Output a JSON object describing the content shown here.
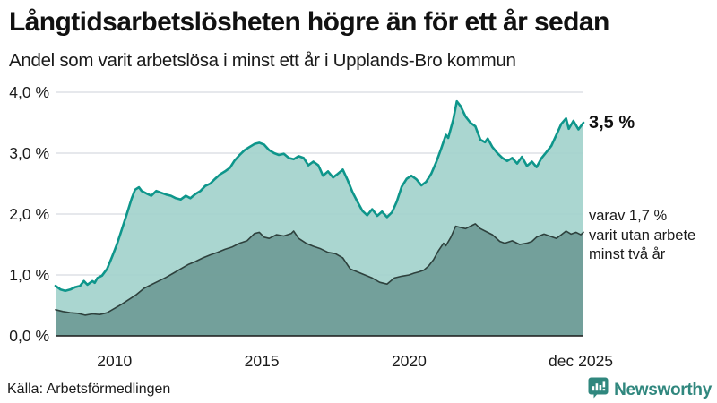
{
  "header": {
    "title": "Långtidsarbetslösheten högre än för ett år sedan",
    "subtitle": "Andel som varit arbetslösa i minst ett år i Upplands-Bro kommun"
  },
  "annotations": {
    "end_value": "3,5 %",
    "secondary": "varav 1,7 %\nvarit utan arbete\nminst två år"
  },
  "footer": {
    "source": "Källa: Arbetsförmedlingen",
    "brand": "Newsworthy"
  },
  "colors": {
    "accent_teal": "#0e968b",
    "area_light": "#a8d5cf",
    "area_dark": "#6f9b96",
    "dark_stroke": "#2e413d",
    "gridline": "#d8dbe0",
    "axis_line": "#1a1a1a",
    "text": "#1a1a1a",
    "brand_teal": "#30877e"
  },
  "chart_data": {
    "type": "area",
    "title": "Långtidsarbetslösheten högre än för ett år sedan",
    "subtitle": "Andel som varit arbetslösa i minst ett år i Upplands-Bro kommun",
    "x_axis": {
      "range": [
        2008.0,
        2025.92
      ],
      "ticks": [
        {
          "pos": 2010,
          "label": "2010"
        },
        {
          "pos": 2015,
          "label": "2015"
        },
        {
          "pos": 2020,
          "label": "2020"
        },
        {
          "pos": 2025.83,
          "label": "dec 2025"
        }
      ]
    },
    "y_axis": {
      "range": [
        0,
        4.05
      ],
      "unit": "%",
      "ticks": [
        {
          "pos": 0,
          "label": "0,0 %"
        },
        {
          "pos": 1,
          "label": "1,0 %"
        },
        {
          "pos": 2,
          "label": "2,0 %"
        },
        {
          "pos": 3,
          "label": "3,0 %"
        },
        {
          "pos": 4,
          "label": "4,0 %"
        }
      ]
    },
    "legend_position": "end-of-line-labels",
    "grid": true,
    "series": [
      {
        "name": "Arbetslösa minst ett år",
        "end_value": 3.5,
        "end_label": "3,5 %",
        "line_color": "#0e968b",
        "fill_color": "#a3d3cc",
        "line_width": 2.6,
        "points": [
          [
            2008.0,
            0.82
          ],
          [
            2008.17,
            0.76
          ],
          [
            2008.33,
            0.74
          ],
          [
            2008.5,
            0.76
          ],
          [
            2008.67,
            0.8
          ],
          [
            2008.83,
            0.82
          ],
          [
            2008.96,
            0.9
          ],
          [
            2009.08,
            0.84
          ],
          [
            2009.25,
            0.9
          ],
          [
            2009.33,
            0.87
          ],
          [
            2009.42,
            0.95
          ],
          [
            2009.58,
            0.99
          ],
          [
            2009.75,
            1.1
          ],
          [
            2009.92,
            1.3
          ],
          [
            2010.08,
            1.5
          ],
          [
            2010.25,
            1.75
          ],
          [
            2010.42,
            2.0
          ],
          [
            2010.58,
            2.25
          ],
          [
            2010.7,
            2.4
          ],
          [
            2010.83,
            2.44
          ],
          [
            2010.92,
            2.38
          ],
          [
            2011.08,
            2.34
          ],
          [
            2011.25,
            2.3
          ],
          [
            2011.42,
            2.38
          ],
          [
            2011.58,
            2.35
          ],
          [
            2011.75,
            2.32
          ],
          [
            2011.92,
            2.3
          ],
          [
            2012.08,
            2.26
          ],
          [
            2012.25,
            2.24
          ],
          [
            2012.42,
            2.3
          ],
          [
            2012.58,
            2.26
          ],
          [
            2012.75,
            2.33
          ],
          [
            2012.92,
            2.38
          ],
          [
            2013.08,
            2.46
          ],
          [
            2013.25,
            2.5
          ],
          [
            2013.42,
            2.58
          ],
          [
            2013.58,
            2.65
          ],
          [
            2013.75,
            2.7
          ],
          [
            2013.92,
            2.76
          ],
          [
            2014.08,
            2.88
          ],
          [
            2014.25,
            2.97
          ],
          [
            2014.42,
            3.05
          ],
          [
            2014.58,
            3.1
          ],
          [
            2014.75,
            3.15
          ],
          [
            2014.92,
            3.17
          ],
          [
            2015.08,
            3.14
          ],
          [
            2015.25,
            3.05
          ],
          [
            2015.42,
            3.0
          ],
          [
            2015.58,
            2.97
          ],
          [
            2015.75,
            2.99
          ],
          [
            2015.92,
            2.92
          ],
          [
            2016.08,
            2.9
          ],
          [
            2016.25,
            2.95
          ],
          [
            2016.42,
            2.92
          ],
          [
            2016.58,
            2.8
          ],
          [
            2016.75,
            2.86
          ],
          [
            2016.92,
            2.8
          ],
          [
            2017.08,
            2.63
          ],
          [
            2017.25,
            2.7
          ],
          [
            2017.42,
            2.6
          ],
          [
            2017.58,
            2.66
          ],
          [
            2017.75,
            2.73
          ],
          [
            2017.92,
            2.55
          ],
          [
            2018.08,
            2.36
          ],
          [
            2018.25,
            2.2
          ],
          [
            2018.42,
            2.05
          ],
          [
            2018.58,
            1.98
          ],
          [
            2018.75,
            2.08
          ],
          [
            2018.92,
            1.97
          ],
          [
            2019.08,
            2.04
          ],
          [
            2019.25,
            1.95
          ],
          [
            2019.42,
            2.03
          ],
          [
            2019.58,
            2.2
          ],
          [
            2019.75,
            2.45
          ],
          [
            2019.92,
            2.58
          ],
          [
            2020.08,
            2.63
          ],
          [
            2020.25,
            2.57
          ],
          [
            2020.42,
            2.47
          ],
          [
            2020.58,
            2.53
          ],
          [
            2020.75,
            2.66
          ],
          [
            2020.92,
            2.85
          ],
          [
            2021.08,
            3.06
          ],
          [
            2021.25,
            3.3
          ],
          [
            2021.33,
            3.25
          ],
          [
            2021.5,
            3.55
          ],
          [
            2021.62,
            3.85
          ],
          [
            2021.75,
            3.77
          ],
          [
            2021.92,
            3.6
          ],
          [
            2022.08,
            3.5
          ],
          [
            2022.25,
            3.44
          ],
          [
            2022.42,
            3.22
          ],
          [
            2022.58,
            3.18
          ],
          [
            2022.67,
            3.24
          ],
          [
            2022.83,
            3.1
          ],
          [
            2023.0,
            3.0
          ],
          [
            2023.17,
            2.92
          ],
          [
            2023.33,
            2.87
          ],
          [
            2023.5,
            2.92
          ],
          [
            2023.67,
            2.83
          ],
          [
            2023.83,
            2.94
          ],
          [
            2024.0,
            2.79
          ],
          [
            2024.17,
            2.86
          ],
          [
            2024.33,
            2.77
          ],
          [
            2024.5,
            2.92
          ],
          [
            2024.67,
            3.02
          ],
          [
            2024.83,
            3.12
          ],
          [
            2025.0,
            3.3
          ],
          [
            2025.17,
            3.48
          ],
          [
            2025.33,
            3.57
          ],
          [
            2025.42,
            3.4
          ],
          [
            2025.58,
            3.53
          ],
          [
            2025.75,
            3.39
          ],
          [
            2025.92,
            3.5
          ]
        ]
      },
      {
        "name": "varav utan arbete minst två år",
        "end_value": 1.7,
        "end_label": "varav 1,7 % varit utan arbete minst två år",
        "line_color": "#2e413d",
        "fill_color": "#6f9b96",
        "line_width": 1.6,
        "points": [
          [
            2008.0,
            0.43
          ],
          [
            2008.25,
            0.4
          ],
          [
            2008.5,
            0.38
          ],
          [
            2008.75,
            0.37
          ],
          [
            2009.0,
            0.34
          ],
          [
            2009.25,
            0.36
          ],
          [
            2009.5,
            0.35
          ],
          [
            2009.75,
            0.38
          ],
          [
            2010.0,
            0.45
          ],
          [
            2010.25,
            0.52
          ],
          [
            2010.5,
            0.6
          ],
          [
            2010.75,
            0.68
          ],
          [
            2011.0,
            0.78
          ],
          [
            2011.25,
            0.84
          ],
          [
            2011.5,
            0.9
          ],
          [
            2011.75,
            0.96
          ],
          [
            2012.0,
            1.03
          ],
          [
            2012.25,
            1.1
          ],
          [
            2012.5,
            1.17
          ],
          [
            2012.75,
            1.22
          ],
          [
            2013.0,
            1.28
          ],
          [
            2013.25,
            1.33
          ],
          [
            2013.5,
            1.37
          ],
          [
            2013.75,
            1.42
          ],
          [
            2014.0,
            1.46
          ],
          [
            2014.25,
            1.52
          ],
          [
            2014.5,
            1.56
          ],
          [
            2014.75,
            1.68
          ],
          [
            2014.92,
            1.7
          ],
          [
            2015.08,
            1.62
          ],
          [
            2015.25,
            1.6
          ],
          [
            2015.5,
            1.66
          ],
          [
            2015.75,
            1.64
          ],
          [
            2016.0,
            1.68
          ],
          [
            2016.08,
            1.72
          ],
          [
            2016.25,
            1.6
          ],
          [
            2016.5,
            1.52
          ],
          [
            2016.75,
            1.47
          ],
          [
            2017.0,
            1.43
          ],
          [
            2017.25,
            1.37
          ],
          [
            2017.5,
            1.35
          ],
          [
            2017.75,
            1.28
          ],
          [
            2018.0,
            1.1
          ],
          [
            2018.25,
            1.05
          ],
          [
            2018.5,
            1.0
          ],
          [
            2018.75,
            0.95
          ],
          [
            2019.0,
            0.88
          ],
          [
            2019.25,
            0.85
          ],
          [
            2019.5,
            0.95
          ],
          [
            2019.75,
            0.98
          ],
          [
            2020.0,
            1.0
          ],
          [
            2020.17,
            1.03
          ],
          [
            2020.33,
            1.05
          ],
          [
            2020.5,
            1.08
          ],
          [
            2020.67,
            1.15
          ],
          [
            2020.83,
            1.25
          ],
          [
            2021.0,
            1.4
          ],
          [
            2021.17,
            1.52
          ],
          [
            2021.25,
            1.48
          ],
          [
            2021.42,
            1.62
          ],
          [
            2021.58,
            1.8
          ],
          [
            2021.75,
            1.78
          ],
          [
            2021.92,
            1.76
          ],
          [
            2022.08,
            1.8
          ],
          [
            2022.25,
            1.84
          ],
          [
            2022.42,
            1.76
          ],
          [
            2022.58,
            1.72
          ],
          [
            2022.83,
            1.66
          ],
          [
            2023.08,
            1.55
          ],
          [
            2023.25,
            1.52
          ],
          [
            2023.5,
            1.56
          ],
          [
            2023.75,
            1.5
          ],
          [
            2024.0,
            1.52
          ],
          [
            2024.17,
            1.55
          ],
          [
            2024.33,
            1.62
          ],
          [
            2024.58,
            1.67
          ],
          [
            2024.83,
            1.63
          ],
          [
            2025.0,
            1.6
          ],
          [
            2025.17,
            1.66
          ],
          [
            2025.33,
            1.72
          ],
          [
            2025.5,
            1.67
          ],
          [
            2025.67,
            1.7
          ],
          [
            2025.83,
            1.66
          ],
          [
            2025.92,
            1.7
          ]
        ]
      }
    ]
  }
}
